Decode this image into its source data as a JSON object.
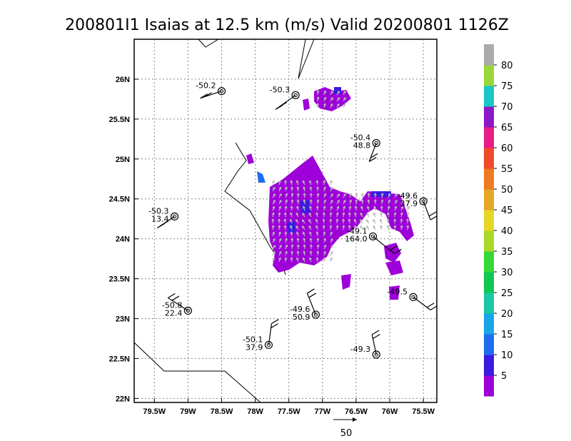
{
  "chart_data": {
    "type": "heatmap",
    "title": "200801I1 Isaias at 12.5 km (m/s) Valid 20200801 1126Z",
    "xlim": [
      -79.8,
      -75.3
    ],
    "ylim": [
      21.95,
      26.5
    ],
    "x_ticks": [
      -79.5,
      -79.0,
      -78.5,
      -78.0,
      -77.5,
      -77.0,
      -76.5,
      -76.0,
      -75.5
    ],
    "x_tick_labels": [
      "79.5W",
      "79W",
      "78.5W",
      "78W",
      "77.5W",
      "77W",
      "76.5W",
      "76W",
      "75.5W"
    ],
    "y_ticks": [
      22.0,
      22.5,
      23.0,
      23.5,
      24.0,
      24.5,
      25.0,
      25.5,
      26.0
    ],
    "y_tick_labels": [
      "22N",
      "22.5N",
      "23N",
      "23.5N",
      "24N",
      "24.5N",
      "25N",
      "25.5N",
      "26N"
    ],
    "grid": true,
    "colorbar": {
      "levels": [
        5,
        10,
        15,
        20,
        25,
        30,
        35,
        40,
        45,
        50,
        55,
        60,
        65,
        70,
        75,
        80
      ],
      "colors": [
        "#9d00d8",
        "#3a1be0",
        "#1e6cf0",
        "#18a6e6",
        "#1cc7a6",
        "#10c850",
        "#36d836",
        "#a8d828",
        "#e6d628",
        "#e6a628",
        "#ee7a22",
        "#ef4a2a",
        "#e81c86",
        "#8c18c8",
        "#1ac6c6",
        "#98d838",
        "#aaaaaa"
      ]
    },
    "reference_vector": {
      "label": "50",
      "value": 50
    },
    "observations": [
      {
        "lon": -78.5,
        "lat": 25.85,
        "labels": [
          "-50.2"
        ]
      },
      {
        "lon": -77.4,
        "lat": 25.8,
        "labels": [
          "-50.3"
        ]
      },
      {
        "lon": -76.2,
        "lat": 25.2,
        "labels": [
          "-50.4",
          "48.8"
        ]
      },
      {
        "lon": -75.5,
        "lat": 24.47,
        "labels": [
          "-49.6",
          "37.9"
        ]
      },
      {
        "lon": -79.2,
        "lat": 24.28,
        "labels": [
          "-50.3",
          "13.4"
        ]
      },
      {
        "lon": -76.25,
        "lat": 24.03,
        "labels": [
          "-49.1",
          "164.0"
        ]
      },
      {
        "lon": -75.65,
        "lat": 23.27,
        "labels": [
          "-49.5"
        ]
      },
      {
        "lon": -79.0,
        "lat": 23.1,
        "labels": [
          "-50.8",
          "22.4"
        ]
      },
      {
        "lon": -77.1,
        "lat": 23.05,
        "labels": [
          "-49.6",
          "50.9"
        ]
      },
      {
        "lon": -77.8,
        "lat": 22.67,
        "labels": [
          "-50.1",
          "37.9"
        ]
      },
      {
        "lon": -76.2,
        "lat": 22.55,
        "labels": [
          "-49.3"
        ]
      }
    ]
  }
}
